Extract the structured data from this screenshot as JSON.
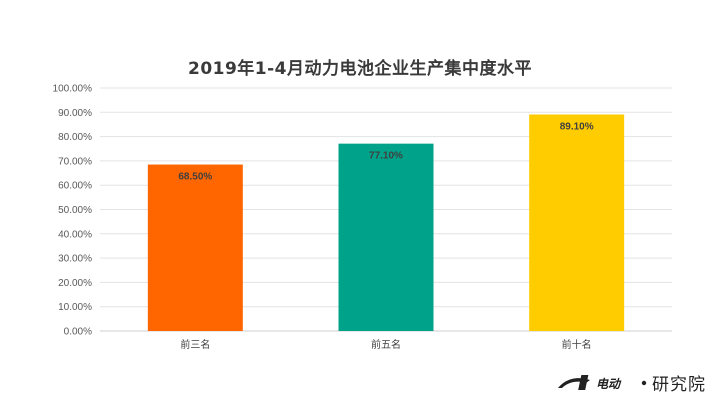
{
  "chart_data": {
    "type": "bar",
    "title": "2019年1-4月动力电池企业生产集中度水平",
    "categories": [
      "前三名",
      "前五名",
      "前十名"
    ],
    "values": [
      68.5,
      77.1,
      89.1
    ],
    "data_labels": [
      "68.50%",
      "77.10%",
      "89.10%"
    ],
    "colors": [
      "#ff6600",
      "#00a28a",
      "#ffcc00"
    ],
    "ylim": [
      0,
      100
    ],
    "yticks": [
      "0.00%",
      "10.00%",
      "20.00%",
      "30.00%",
      "40.00%",
      "50.00%",
      "60.00%",
      "70.00%",
      "80.00%",
      "90.00%",
      "100.00%"
    ],
    "grid": true,
    "legend": false
  },
  "watermark": {
    "text": "研究院",
    "logo_text": "第1电动"
  }
}
